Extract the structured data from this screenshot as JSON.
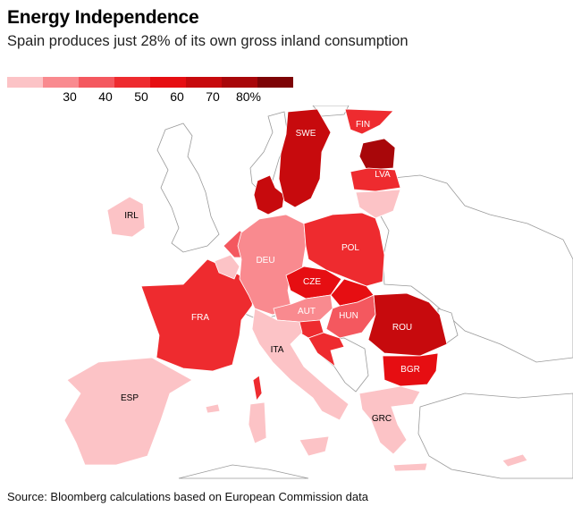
{
  "title": "Energy Independence",
  "subtitle": "Spain produces just 28% of its own gross inland consumption",
  "source": "Source: Bloomberg calculations based on European Commission data",
  "legend": {
    "colors": [
      "#fcc3c6",
      "#f98a8f",
      "#f4585f",
      "#ee2b2f",
      "#e60e12",
      "#c70a0d",
      "#a8070a",
      "#7d0406"
    ],
    "labels": [
      "30",
      "40",
      "50",
      "60",
      "70",
      "80%"
    ]
  },
  "map": {
    "regions": [
      {
        "code": "ESP",
        "label": "ESP",
        "value": 28
      },
      {
        "code": "FRA",
        "label": "FRA",
        "value": 55
      },
      {
        "code": "DEU",
        "label": "DEU",
        "value": 37
      },
      {
        "code": "POL",
        "label": "POL",
        "value": 58
      },
      {
        "code": "CZE",
        "label": "CZE",
        "value": 68
      },
      {
        "code": "AUT",
        "label": "AUT",
        "value": 38
      },
      {
        "code": "HUN",
        "label": "HUN",
        "value": 46
      },
      {
        "code": "ROU",
        "label": "ROU",
        "value": 76
      },
      {
        "code": "BGR",
        "label": "BGR",
        "value": 64
      },
      {
        "code": "ITA",
        "label": "ITA",
        "value": 24
      },
      {
        "code": "GRC",
        "label": "GRC",
        "value": 25
      },
      {
        "code": "IRL",
        "label": "IRL",
        "value": 28
      },
      {
        "code": "SWE",
        "label": "SWE",
        "value": 72
      },
      {
        "code": "FIN",
        "label": "FIN",
        "value": 55
      },
      {
        "code": "LVA",
        "label": "LVA",
        "value": 56
      },
      {
        "code": "EST",
        "label": "",
        "value": 85
      },
      {
        "code": "LTU",
        "label": "",
        "value": 25
      },
      {
        "code": "DNK",
        "label": "",
        "value": 78
      },
      {
        "code": "NLD",
        "label": "",
        "value": 46
      },
      {
        "code": "BEL",
        "label": "",
        "value": 27
      },
      {
        "code": "SVK",
        "label": "",
        "value": 63
      },
      {
        "code": "SVN",
        "label": "",
        "value": 50
      },
      {
        "code": "HRV",
        "label": "",
        "value": 50
      },
      {
        "code": "COR",
        "label": "",
        "value": 55
      },
      {
        "code": "SAR",
        "label": "",
        "value": 24
      },
      {
        "code": "SIC",
        "label": "",
        "value": 24
      },
      {
        "code": "CYP",
        "label": "",
        "value": 25
      },
      {
        "code": "BALE",
        "label": "",
        "value": 28
      },
      {
        "code": "CRE",
        "label": "",
        "value": 25
      }
    ]
  }
}
